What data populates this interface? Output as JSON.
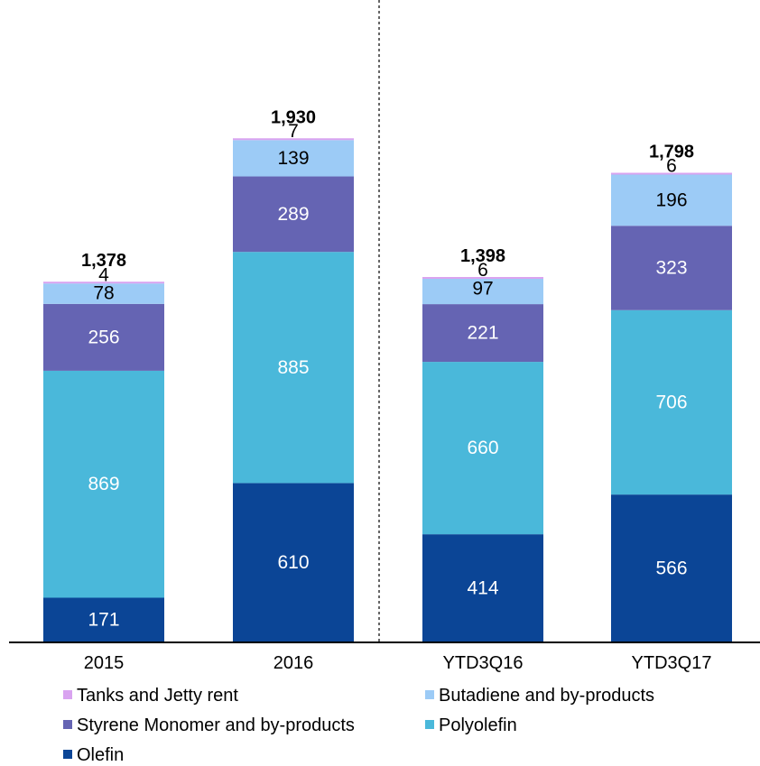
{
  "chart_data": {
    "type": "bar",
    "stacked": true,
    "categories": [
      "2015",
      "2016",
      "YTD3Q16",
      "YTD3Q17"
    ],
    "totals": [
      "1,378",
      "1,930",
      "1,398",
      "1,798"
    ],
    "series": [
      {
        "name": "Olefin",
        "color": "#0B4596",
        "label_color": "#ffffff",
        "values": [
          171,
          610,
          414,
          566
        ]
      },
      {
        "name": "Polyolefin",
        "color": "#4AB8DA",
        "label_color": "#ffffff",
        "values": [
          869,
          885,
          660,
          706
        ]
      },
      {
        "name": "Styrene Monomer and by-products",
        "color": "#6564B3",
        "label_color": "#ffffff",
        "values": [
          256,
          289,
          221,
          323
        ]
      },
      {
        "name": "Butadiene and by-products",
        "color": "#9CCBF6",
        "label_color": "#000000",
        "values": [
          78,
          139,
          97,
          196
        ]
      },
      {
        "name": "Tanks and Jetty rent",
        "color": "#D9A3F0",
        "label_color": "#000000",
        "values": [
          4,
          7,
          6,
          6
        ]
      }
    ],
    "legend_order": [
      "Tanks and Jetty rent",
      "Butadiene and by-products",
      "Styrene Monomer and by-products",
      "Polyolefin",
      "Olefin"
    ],
    "ylim": [
      0,
      2200
    ],
    "divider_after_category": 1,
    "legend_position": "bottom",
    "grid": false
  }
}
